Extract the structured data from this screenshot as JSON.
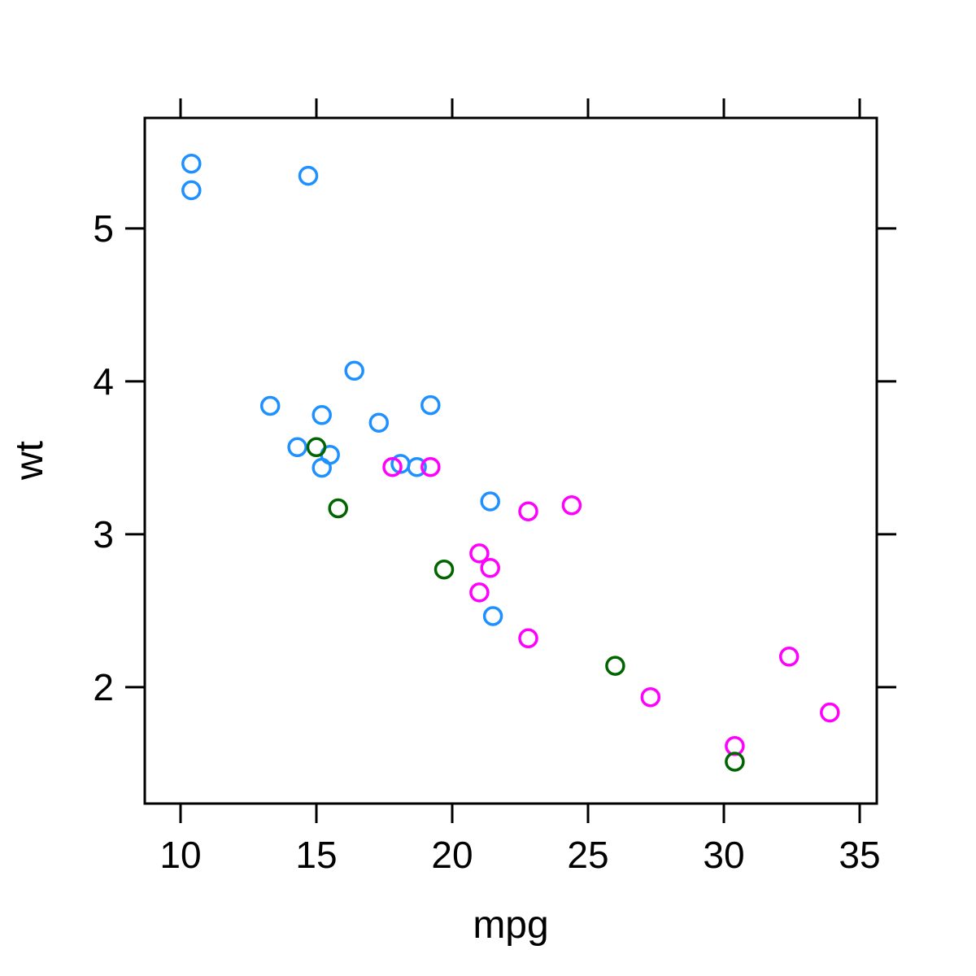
{
  "chart_data": {
    "type": "scatter",
    "title": "",
    "xlabel": "mpg",
    "ylabel": "wt",
    "xlim": [
      8.683,
      35.629
    ],
    "ylim": [
      1.239,
      5.723
    ],
    "xticks": [
      10,
      15,
      20,
      25,
      30,
      35
    ],
    "yticks": [
      2,
      3,
      4,
      5
    ],
    "grid": false,
    "legend": "none",
    "marker": "open-circle",
    "frame": "box-with-outward-ticks-all-sides",
    "axis_color": "#000000",
    "background": "#ffffff",
    "series": [
      {
        "name": "blue-group",
        "color": "#1E90FF",
        "points": [
          [
            21.4,
            3.215
          ],
          [
            18.7,
            3.44
          ],
          [
            18.1,
            3.46
          ],
          [
            14.3,
            3.57
          ],
          [
            16.4,
            4.07
          ],
          [
            17.3,
            3.73
          ],
          [
            15.2,
            3.78
          ],
          [
            10.4,
            5.25
          ],
          [
            10.4,
            5.424
          ],
          [
            14.7,
            5.345
          ],
          [
            21.5,
            2.465
          ],
          [
            15.5,
            3.52
          ],
          [
            15.2,
            3.435
          ],
          [
            13.3,
            3.84
          ],
          [
            19.2,
            3.845
          ]
        ]
      },
      {
        "name": "magenta-group",
        "color": "#FF00FF",
        "points": [
          [
            21.0,
            2.62
          ],
          [
            21.0,
            2.875
          ],
          [
            22.8,
            2.32
          ],
          [
            24.4,
            3.19
          ],
          [
            22.8,
            3.15
          ],
          [
            19.2,
            3.44
          ],
          [
            17.8,
            3.44
          ],
          [
            32.4,
            2.2
          ],
          [
            30.4,
            1.615
          ],
          [
            33.9,
            1.835
          ],
          [
            27.3,
            1.935
          ],
          [
            21.4,
            2.78
          ]
        ]
      },
      {
        "name": "dark-green-group",
        "color": "#006400",
        "points": [
          [
            26.0,
            2.14
          ],
          [
            30.4,
            1.513
          ],
          [
            15.8,
            3.17
          ],
          [
            19.7,
            2.77
          ],
          [
            15.0,
            3.57
          ]
        ]
      }
    ]
  }
}
